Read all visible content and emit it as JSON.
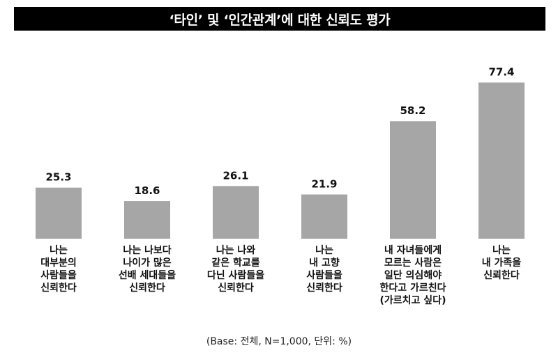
{
  "chart_data": {
    "type": "bar",
    "title": "‘타인’ 및 ‘인간관계’에 대한 신뢰도 평가",
    "categories": [
      "나는\n대부분의\n사람들을\n신뢰한다",
      "나는 나보다\n나이가 많은\n선배 세대들을\n신뢰한다",
      "나는 나와\n같은 학교를\n다닌 사람들을\n신뢰한다",
      "나는\n내 고향\n사람들을\n신뢰한다",
      "내 자녀들에게\n모르는 사람은\n일단 의심해야\n한다고 가르친다\n(가르치고 싶다)",
      "나는\n내 가족을\n신뢰한다"
    ],
    "values": [
      25.3,
      18.6,
      26.1,
      21.9,
      58.2,
      77.4
    ],
    "value_labels": [
      "25.3",
      "18.6",
      "26.1",
      "21.9",
      "58.2",
      "77.4"
    ],
    "ylim": [
      0,
      100
    ],
    "grid": false,
    "legend": "none",
    "colors": {
      "bar": "#a6a6a6",
      "title_bg": "#000000",
      "title_text": "#ffffff"
    }
  },
  "footnote": "(Base: 전체, N=1,000, 단위: %)"
}
